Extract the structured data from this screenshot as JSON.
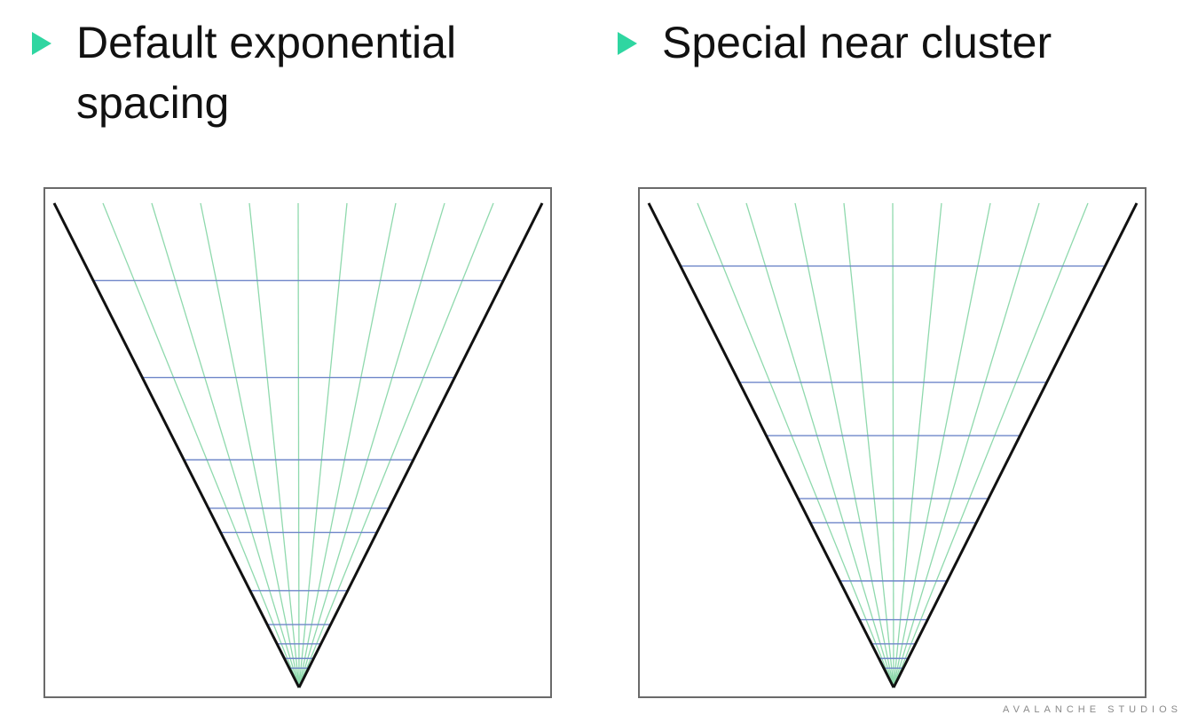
{
  "bullets": {
    "left": "Default exponential spacing",
    "right": "Special near cluster"
  },
  "colors": {
    "bullet": "#2fd6a1",
    "frustum_edge": "#111111",
    "ray": "#8fd9ad",
    "slice": "#6f86c9",
    "frame": "#6a6a6a"
  },
  "diagrams": [
    {
      "name": "default-exponential",
      "ray_count": 10,
      "slice_depths": [
        0.16,
        0.36,
        0.53,
        0.63,
        0.68,
        0.8,
        0.87,
        0.91,
        0.94,
        0.96
      ]
    },
    {
      "name": "special-near-cluster",
      "ray_count": 10,
      "slice_depths": [
        0.13,
        0.37,
        0.48,
        0.61,
        0.66,
        0.78,
        0.86,
        0.91,
        0.94,
        0.96
      ]
    }
  ],
  "watermark": "AVALANCHE STUDIOS"
}
